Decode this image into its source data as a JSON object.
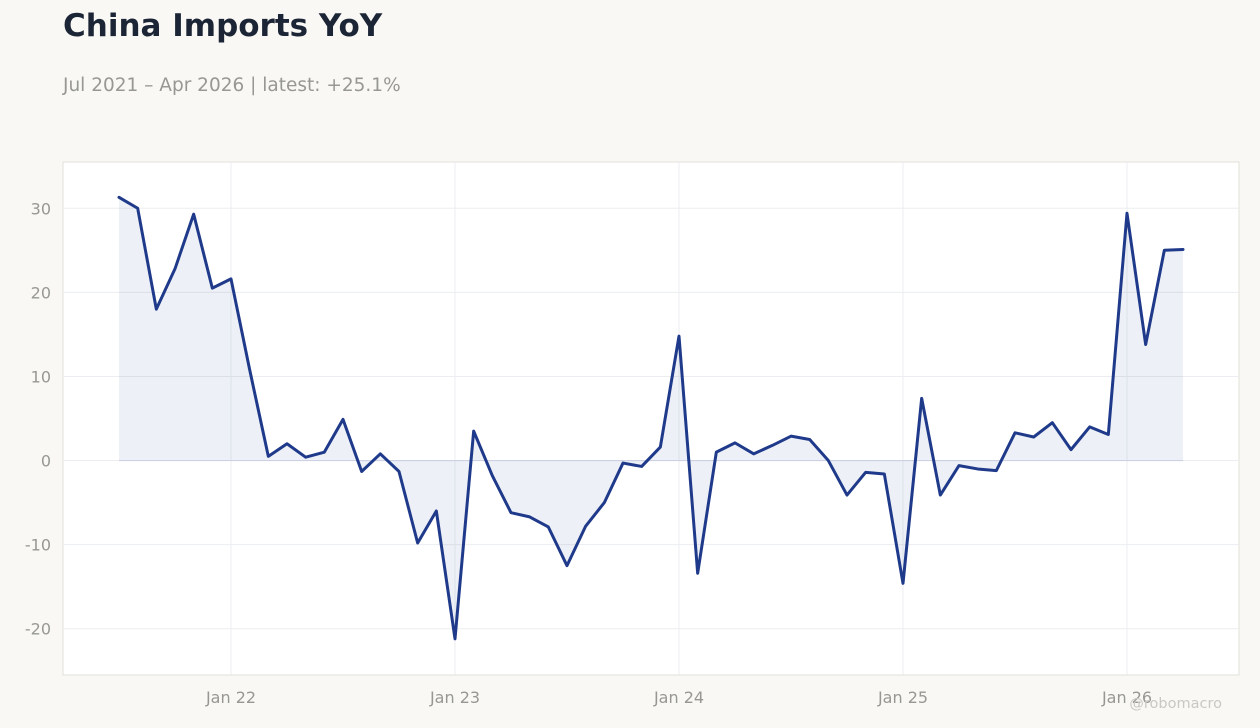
{
  "title": "China Imports YoY",
  "subtitle": "Jul 2021 – Apr 2026 | latest: +25.1%",
  "watermark": "@robomacro",
  "colors": {
    "line": "#1f3a8a",
    "fill": "#1f3a8a",
    "background": "#f9f8f5",
    "plot_background": "#ffffff",
    "grid": "#ecedf0",
    "zero_line": "#d4d7e8",
    "frame": "#e1e0d9"
  },
  "chart_data": {
    "type": "area",
    "title": "China Imports YoY",
    "xlabel": "",
    "ylabel": "",
    "grid": true,
    "legend": "none",
    "x": [
      "2021-07",
      "2021-08",
      "2021-09",
      "2021-10",
      "2021-11",
      "2021-12",
      "2022-01",
      "2022-02",
      "2022-03",
      "2022-04",
      "2022-05",
      "2022-06",
      "2022-07",
      "2022-08",
      "2022-09",
      "2022-10",
      "2022-11",
      "2022-12",
      "2023-01",
      "2023-02",
      "2023-03",
      "2023-04",
      "2023-05",
      "2023-06",
      "2023-07",
      "2023-08",
      "2023-09",
      "2023-10",
      "2023-11",
      "2023-12",
      "2024-01",
      "2024-02",
      "2024-03",
      "2024-04",
      "2024-05",
      "2024-06",
      "2024-07",
      "2024-08",
      "2024-09",
      "2024-10",
      "2024-11",
      "2024-12",
      "2025-01",
      "2025-02",
      "2025-03",
      "2025-04",
      "2025-05",
      "2025-06",
      "2025-07",
      "2025-08",
      "2025-09",
      "2025-10",
      "2025-11",
      "2025-12",
      "2026-01",
      "2026-02",
      "2026-03",
      "2026-04"
    ],
    "values": [
      31.3,
      30.0,
      18.0,
      22.8,
      29.3,
      20.5,
      21.6,
      10.8,
      0.5,
      2.0,
      0.4,
      1.0,
      4.9,
      -1.3,
      0.8,
      -1.3,
      -9.8,
      -6.0,
      -21.2,
      3.5,
      -1.8,
      -6.2,
      -6.7,
      -7.9,
      -12.5,
      -7.8,
      -5.0,
      -0.3,
      -0.7,
      1.6,
      14.8,
      -13.4,
      1.0,
      2.1,
      0.8,
      1.8,
      2.9,
      2.5,
      0.0,
      -4.1,
      -1.4,
      -1.6,
      -14.6,
      7.4,
      -4.1,
      -0.6,
      -1.0,
      -1.2,
      3.3,
      2.8,
      4.5,
      1.3,
      4.0,
      3.1,
      29.4,
      13.8,
      25.0,
      25.1
    ],
    "xticks": [
      {
        "at": "2022-01",
        "label": "Jan 22"
      },
      {
        "at": "2023-01",
        "label": "Jan 23"
      },
      {
        "at": "2024-01",
        "label": "Jan 24"
      },
      {
        "at": "2025-01",
        "label": "Jan 25"
      },
      {
        "at": "2026-01",
        "label": "Jan 26"
      }
    ],
    "yticks": [
      {
        "value": 30,
        "label": "30"
      },
      {
        "value": 20,
        "label": "20"
      },
      {
        "value": 10,
        "label": "10"
      },
      {
        "value": 0,
        "label": "0"
      },
      {
        "value": -10,
        "label": "-10"
      },
      {
        "value": -20,
        "label": "-20"
      }
    ],
    "xlim": [
      "2021-04",
      "2026-07"
    ],
    "ylim": [
      -25.5,
      35.5
    ]
  }
}
